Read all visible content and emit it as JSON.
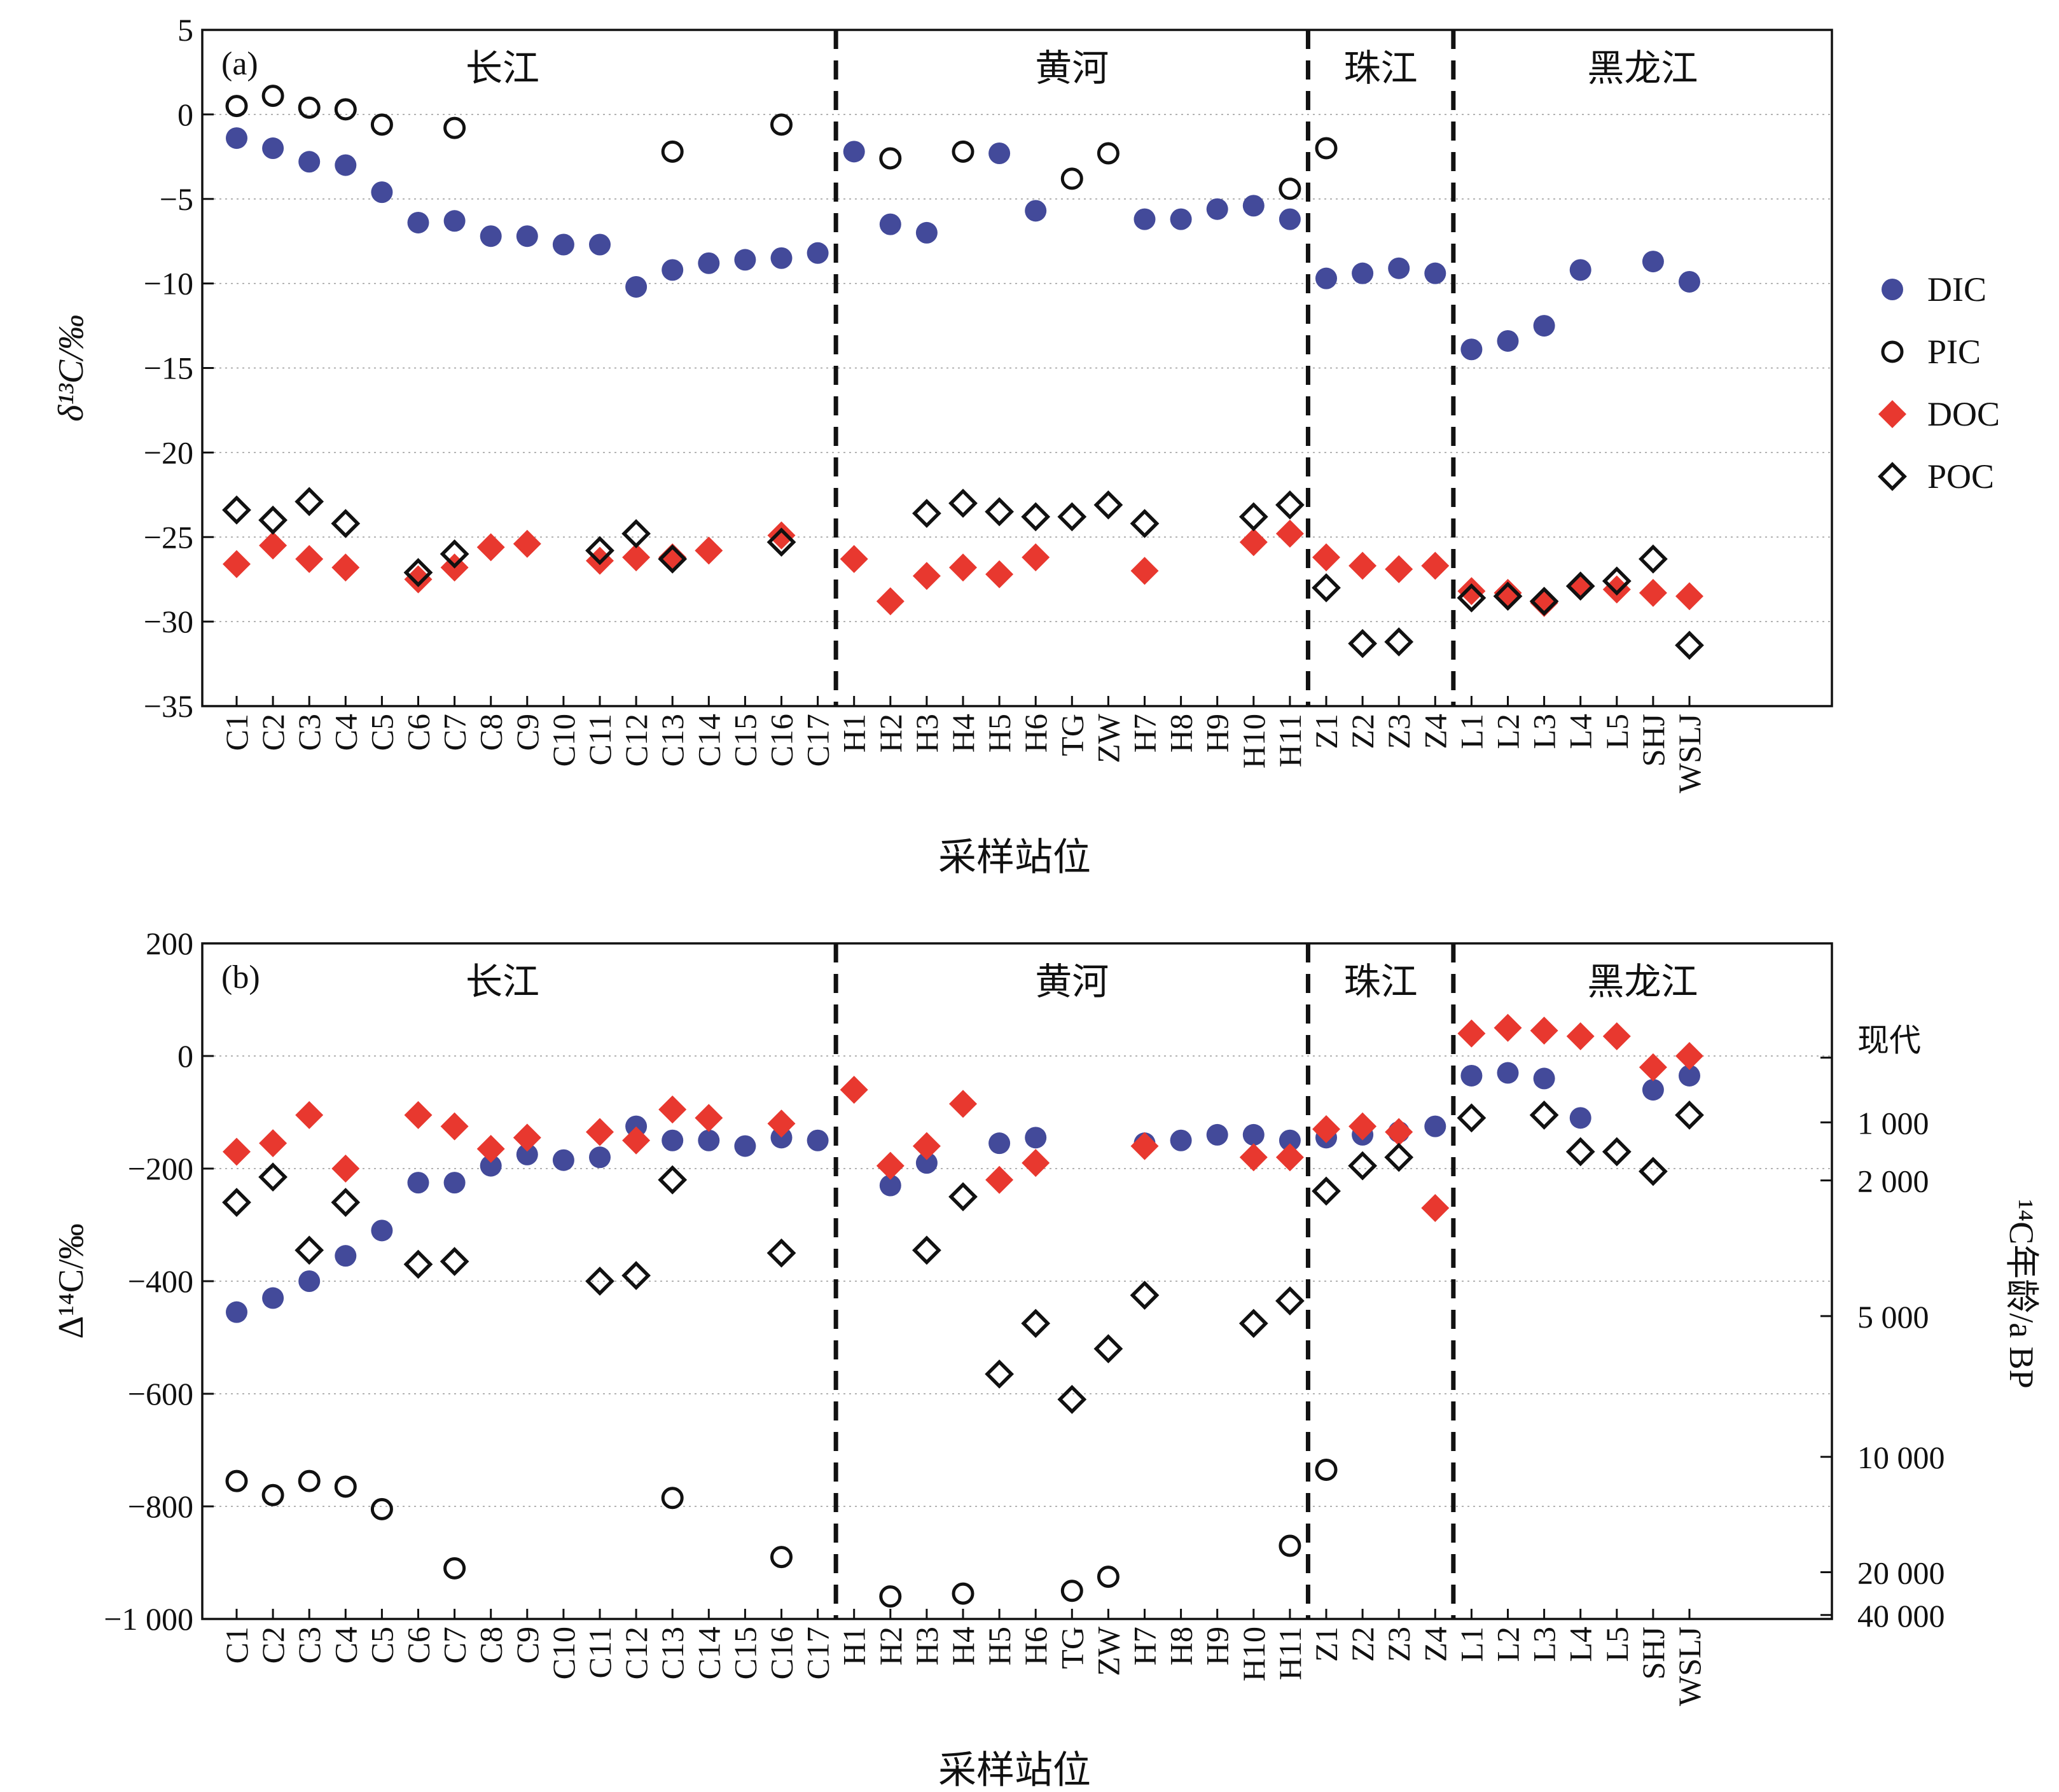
{
  "chart_data": [
    {
      "type": "scatter",
      "panel_label": "(a)",
      "xlabel": "采样站位",
      "ylabel": "δ¹³C/‰",
      "ylim": [
        -35,
        5
      ],
      "yticks": [
        5,
        0,
        -5,
        -10,
        -15,
        -20,
        -25,
        -30,
        -35
      ],
      "ytick_labels": [
        "5",
        "0",
        "−5",
        "−10",
        "−15",
        "−20",
        "−25",
        "−30",
        "−35"
      ],
      "categories": [
        "C1",
        "C2",
        "C3",
        "C4",
        "C5",
        "C6",
        "C7",
        "C8",
        "C9",
        "C10",
        "C11",
        "C12",
        "C13",
        "C14",
        "C15",
        "C16",
        "C17",
        "H1",
        "H2",
        "H3",
        "H4",
        "H5",
        "H6",
        "TG",
        "ZW",
        "H7",
        "H8",
        "H9",
        "H10",
        "H11",
        "Z1",
        "Z2",
        "Z3",
        "Z4",
        "L1",
        "L2",
        "L3",
        "L4",
        "L5",
        "SHJ",
        "WSLJ"
      ],
      "groups": [
        {
          "name": "长江",
          "categories": [
            "C1",
            "C2",
            "C3",
            "C4",
            "C5",
            "C6",
            "C7",
            "C8",
            "C9",
            "C10",
            "C11",
            "C12",
            "C13",
            "C14",
            "C15",
            "C16",
            "C17"
          ]
        },
        {
          "name": "黄河",
          "categories": [
            "H1",
            "H2",
            "H3",
            "H4",
            "H5",
            "H6",
            "TG",
            "ZW",
            "H7",
            "H8",
            "H9",
            "H10",
            "H11"
          ]
        },
        {
          "name": "珠江",
          "categories": [
            "Z1",
            "Z2",
            "Z3",
            "Z4"
          ]
        },
        {
          "name": "黑龙江",
          "categories": [
            "L1",
            "L2",
            "L3",
            "L4",
            "L5",
            "SHJ",
            "WSLJ"
          ]
        }
      ],
      "legend_position": "right",
      "grid": "horizontal-dotted",
      "series": [
        {
          "name": "DIC",
          "marker": "circle-filled",
          "color": "#434a9a",
          "values": [
            -1.4,
            -2,
            -2.8,
            -3,
            -4.6,
            -6.4,
            -6.3,
            -7.2,
            -7.2,
            -7.7,
            -7.7,
            -10.2,
            -9.2,
            -8.8,
            -8.6,
            -8.5,
            -8.2,
            -2.2,
            -6.5,
            -7,
            null,
            -2.3,
            -5.7,
            null,
            null,
            -6.2,
            -6.2,
            -5.6,
            -5.4,
            -6.2,
            -9.7,
            -9.4,
            -9.1,
            -9.4,
            -13.9,
            -13.4,
            -12.5,
            -9.2,
            null,
            -8.7,
            -9.9
          ]
        },
        {
          "name": "PIC",
          "marker": "circle-open",
          "color": "#111111",
          "values": [
            0.5,
            1.1,
            0.4,
            0.3,
            -0.6,
            null,
            -0.8,
            null,
            null,
            null,
            null,
            null,
            -2.2,
            null,
            null,
            -0.6,
            null,
            null,
            -2.6,
            null,
            -2.2,
            null,
            null,
            -3.8,
            -2.3,
            null,
            null,
            null,
            null,
            -4.4,
            -2,
            null,
            null,
            null,
            null,
            null,
            null,
            null,
            null,
            null,
            null
          ]
        },
        {
          "name": "DOC",
          "marker": "diamond-filled",
          "color": "#e8382f",
          "values": [
            -26.6,
            -25.5,
            -26.3,
            -26.8,
            null,
            -27.5,
            -26.8,
            -25.6,
            -25.4,
            null,
            -26.4,
            -26.2,
            -26.2,
            -25.8,
            null,
            -24.9,
            null,
            -26.3,
            -28.8,
            -27.3,
            -26.8,
            -27.2,
            -26.2,
            null,
            null,
            -27,
            null,
            null,
            -25.3,
            -24.8,
            -26.2,
            -26.7,
            -26.9,
            -26.7,
            -28.2,
            -28.3,
            -28.9,
            -27.9,
            -28.1,
            -28.3,
            -28.5
          ]
        },
        {
          "name": "POC",
          "marker": "diamond-open",
          "color": "#111111",
          "values": [
            -23.4,
            -24,
            -22.9,
            -24.2,
            null,
            -27.1,
            -26,
            null,
            null,
            null,
            -25.8,
            -24.8,
            -26.3,
            null,
            null,
            -25.3,
            null,
            null,
            null,
            -23.6,
            -23,
            -23.5,
            -23.8,
            -23.8,
            -23.1,
            -24.2,
            null,
            null,
            -23.8,
            -23.1,
            -28,
            -31.3,
            -31.2,
            null,
            -28.6,
            -28.5,
            -28.8,
            -27.9,
            -27.6,
            -26.3,
            -31.4
          ]
        }
      ]
    },
    {
      "type": "scatter",
      "panel_label": "(b)",
      "xlabel": "采样站位",
      "ylabel": "Δ¹⁴C/‰",
      "y2label": "¹⁴C年龄/a BP",
      "ylim": [
        -1000,
        200
      ],
      "yticks": [
        200,
        0,
        -200,
        -400,
        -600,
        -800,
        -1000
      ],
      "ytick_labels": [
        "200",
        "0",
        "−200",
        "−400",
        "−600",
        "−800",
        "−1 000"
      ],
      "y2ticks": [
        {
          "label": "现代",
          "delta14c": -3
        },
        {
          "label": "1 000",
          "delta14c": -118
        },
        {
          "label": "2 000",
          "delta14c": -221
        },
        {
          "label": "5 000",
          "delta14c": -462
        },
        {
          "label": "10 000",
          "delta14c": -712
        },
        {
          "label": "20 000",
          "delta14c": -917
        },
        {
          "label": "40 000",
          "delta14c": -993
        }
      ],
      "categories": [
        "C1",
        "C2",
        "C3",
        "C4",
        "C5",
        "C6",
        "C7",
        "C8",
        "C9",
        "C10",
        "C11",
        "C12",
        "C13",
        "C14",
        "C15",
        "C16",
        "C17",
        "H1",
        "H2",
        "H3",
        "H4",
        "H5",
        "H6",
        "TG",
        "ZW",
        "H7",
        "H8",
        "H9",
        "H10",
        "H11",
        "Z1",
        "Z2",
        "Z3",
        "Z4",
        "L1",
        "L2",
        "L3",
        "L4",
        "L5",
        "SHJ",
        "WSLJ"
      ],
      "groups": [
        {
          "name": "长江",
          "categories": [
            "C1",
            "C2",
            "C3",
            "C4",
            "C5",
            "C6",
            "C7",
            "C8",
            "C9",
            "C10",
            "C11",
            "C12",
            "C13",
            "C14",
            "C15",
            "C16",
            "C17"
          ]
        },
        {
          "name": "黄河",
          "categories": [
            "H1",
            "H2",
            "H3",
            "H4",
            "H5",
            "H6",
            "TG",
            "ZW",
            "H7",
            "H8",
            "H9",
            "H10",
            "H11"
          ]
        },
        {
          "name": "珠江",
          "categories": [
            "Z1",
            "Z2",
            "Z3",
            "Z4"
          ]
        },
        {
          "name": "黑龙江",
          "categories": [
            "L1",
            "L2",
            "L3",
            "L4",
            "L5",
            "SHJ",
            "WSLJ"
          ]
        }
      ],
      "grid": "horizontal-dotted",
      "series": [
        {
          "name": "DIC",
          "marker": "circle-filled",
          "color": "#434a9a",
          "values": [
            -455,
            -430,
            -400,
            -355,
            -310,
            -225,
            -225,
            -195,
            -175,
            -185,
            -180,
            -125,
            -150,
            -150,
            -160,
            -145,
            -150,
            null,
            -230,
            -190,
            null,
            -155,
            -145,
            null,
            null,
            -155,
            -150,
            -140,
            -140,
            -150,
            -145,
            -140,
            -135,
            -125,
            -35,
            -30,
            -40,
            -110,
            null,
            -60,
            -35
          ]
        },
        {
          "name": "PIC",
          "marker": "circle-open",
          "color": "#111111",
          "values": [
            -755,
            -780,
            -755,
            -765,
            -805,
            null,
            -910,
            null,
            null,
            null,
            null,
            null,
            -785,
            null,
            null,
            -890,
            null,
            null,
            -960,
            null,
            -955,
            null,
            null,
            -950,
            -925,
            null,
            null,
            null,
            null,
            -870,
            -735,
            null,
            null,
            null,
            null,
            null,
            null,
            null,
            null,
            null,
            null
          ]
        },
        {
          "name": "DOC",
          "marker": "diamond-filled",
          "color": "#e8382f",
          "values": [
            -170,
            -155,
            -105,
            -200,
            null,
            -105,
            -125,
            -165,
            -145,
            null,
            -135,
            -150,
            -95,
            -110,
            null,
            -120,
            null,
            -60,
            -195,
            -160,
            -85,
            -220,
            -190,
            null,
            null,
            -160,
            null,
            null,
            -180,
            -180,
            -130,
            -125,
            -135,
            -270,
            40,
            50,
            45,
            35,
            35,
            -20,
            0
          ]
        },
        {
          "name": "POC",
          "marker": "diamond-open",
          "color": "#111111",
          "values": [
            -260,
            -215,
            -345,
            -260,
            null,
            -370,
            -365,
            null,
            null,
            null,
            -400,
            -390,
            -220,
            null,
            null,
            -350,
            null,
            null,
            null,
            -345,
            -250,
            -565,
            -475,
            -610,
            -520,
            -425,
            null,
            null,
            -475,
            -435,
            -240,
            -195,
            -180,
            null,
            -110,
            null,
            -105,
            -170,
            -170,
            -205,
            -105
          ]
        }
      ]
    }
  ]
}
